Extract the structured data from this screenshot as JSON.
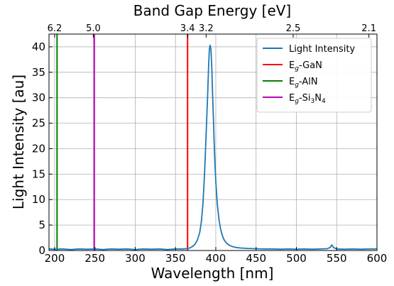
{
  "chart_data": {
    "type": "line",
    "title": "Band Gap Energy [eV]",
    "xlabel": "Wavelength [nm]",
    "ylabel": "Light Intensity [au]",
    "xlim": [
      193,
      600
    ],
    "ylim": [
      0,
      42.5
    ],
    "grid": true,
    "legend_position": "top-right",
    "x_ticks": [
      200,
      250,
      300,
      350,
      400,
      450,
      500,
      550,
      600
    ],
    "y_ticks": [
      0,
      5,
      10,
      15,
      20,
      25,
      30,
      35,
      40
    ],
    "top_axis": {
      "ticks": [
        {
          "label": "6.2",
          "wavelength": 200
        },
        {
          "label": "5.0",
          "wavelength": 248
        },
        {
          "label": "3.4",
          "wavelength": 365
        },
        {
          "label": "3.2",
          "wavelength": 388
        },
        {
          "label": "2.5",
          "wavelength": 496
        },
        {
          "label": "2.1",
          "wavelength": 590
        }
      ]
    },
    "series": [
      {
        "name": "Light Intensity",
        "color": "#1f77b4",
        "points": [
          [
            193,
            0.3
          ],
          [
            200,
            0.25
          ],
          [
            210,
            0.3
          ],
          [
            220,
            0.2
          ],
          [
            230,
            0.3
          ],
          [
            240,
            0.25
          ],
          [
            250,
            0.3
          ],
          [
            260,
            0.2
          ],
          [
            270,
            0.3
          ],
          [
            280,
            0.25
          ],
          [
            290,
            0.3
          ],
          [
            300,
            0.2
          ],
          [
            310,
            0.3
          ],
          [
            320,
            0.25
          ],
          [
            330,
            0.3
          ],
          [
            340,
            0.2
          ],
          [
            350,
            0.3
          ],
          [
            360,
            0.3
          ],
          [
            365,
            0.4
          ],
          [
            368,
            0.5
          ],
          [
            371,
            0.8
          ],
          [
            374,
            1.2
          ],
          [
            377,
            2.0
          ],
          [
            380,
            3.5
          ],
          [
            382,
            5.5
          ],
          [
            384,
            9
          ],
          [
            386,
            15
          ],
          [
            388,
            23
          ],
          [
            390,
            31
          ],
          [
            391,
            36
          ],
          [
            392,
            39.5
          ],
          [
            393,
            40.3
          ],
          [
            394,
            39.5
          ],
          [
            395,
            36
          ],
          [
            396,
            31
          ],
          [
            397,
            26
          ],
          [
            398,
            21
          ],
          [
            399,
            17
          ],
          [
            400,
            13.5
          ],
          [
            402,
            9
          ],
          [
            404,
            6
          ],
          [
            406,
            4.2
          ],
          [
            408,
            3.0
          ],
          [
            410,
            2.2
          ],
          [
            413,
            1.5
          ],
          [
            416,
            1.1
          ],
          [
            420,
            0.8
          ],
          [
            425,
            0.6
          ],
          [
            430,
            0.5
          ],
          [
            440,
            0.4
          ],
          [
            450,
            0.35
          ],
          [
            460,
            0.3
          ],
          [
            470,
            0.3
          ],
          [
            480,
            0.25
          ],
          [
            490,
            0.3
          ],
          [
            500,
            0.25
          ],
          [
            510,
            0.3
          ],
          [
            520,
            0.25
          ],
          [
            530,
            0.3
          ],
          [
            538,
            0.35
          ],
          [
            542,
            0.6
          ],
          [
            544,
            1.1
          ],
          [
            546,
            0.6
          ],
          [
            550,
            0.3
          ],
          [
            560,
            0.25
          ],
          [
            570,
            0.3
          ],
          [
            580,
            0.25
          ],
          [
            590,
            0.3
          ],
          [
            600,
            0.3
          ]
        ]
      }
    ],
    "vertical_lines": [
      {
        "name": "Eg-GaN",
        "wavelength": 365,
        "color": "#ff0000",
        "legend_main": "E",
        "legend_sub": "g",
        "legend_rest": "-GaN"
      },
      {
        "name": "Eg-AlN",
        "wavelength": 203,
        "color": "#008000",
        "legend_main": "E",
        "legend_sub": "g",
        "legend_rest": "-AlN"
      },
      {
        "name": "Eg-Si3N4",
        "wavelength": 249,
        "color": "#bf00bf",
        "legend_main": "E",
        "legend_sub": "g",
        "legend_rest": "-Si",
        "legend_sub2": "3",
        "legend_rest2": "N",
        "legend_sub3": "4"
      }
    ]
  }
}
